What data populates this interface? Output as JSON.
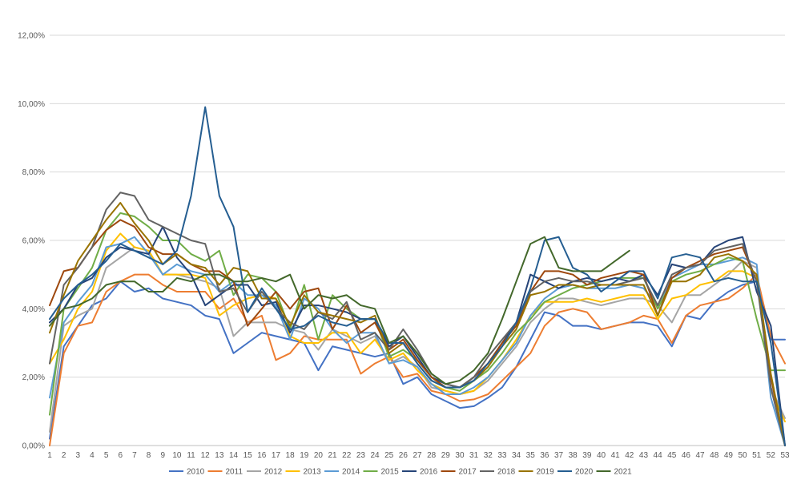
{
  "chart_data": {
    "type": "line",
    "title": "",
    "xlabel": "",
    "ylabel": "",
    "ylim": [
      0,
      0.12
    ],
    "y_ticks": [
      "0,00%",
      "2,00%",
      "4,00%",
      "6,00%",
      "8,00%",
      "10,00%",
      "12,00%"
    ],
    "y_tick_values": [
      0,
      0.02,
      0.04,
      0.06,
      0.08,
      0.1,
      0.12
    ],
    "grid": "horizontal",
    "legend_position": "bottom",
    "x": [
      1,
      2,
      3,
      4,
      5,
      6,
      7,
      8,
      9,
      10,
      11,
      12,
      13,
      14,
      15,
      16,
      17,
      18,
      19,
      20,
      21,
      22,
      23,
      24,
      25,
      26,
      27,
      28,
      29,
      30,
      31,
      32,
      33,
      34,
      35,
      36,
      37,
      38,
      39,
      40,
      41,
      42,
      43,
      44,
      45,
      46,
      47,
      48,
      49,
      50,
      51,
      52,
      53
    ],
    "series": [
      {
        "name": "2010",
        "color": "#4472C4",
        "values": [
          0.002,
          0.029,
          0.035,
          0.041,
          0.043,
          0.048,
          0.045,
          0.046,
          0.043,
          0.042,
          0.041,
          0.038,
          0.037,
          0.027,
          0.03,
          0.033,
          0.032,
          0.031,
          0.03,
          0.022,
          0.029,
          0.028,
          0.027,
          0.026,
          0.027,
          0.018,
          0.02,
          0.015,
          0.013,
          0.011,
          0.0115,
          0.014,
          0.017,
          0.023,
          0.031,
          0.039,
          0.038,
          0.035,
          0.035,
          0.034,
          0.035,
          0.036,
          0.036,
          0.035,
          0.029,
          0.038,
          0.037,
          0.042,
          0.045,
          0.047,
          0.048,
          0.031,
          0.031
        ]
      },
      {
        "name": "2011",
        "color": "#ED7D31",
        "values": [
          0.0,
          0.027,
          0.035,
          0.036,
          0.045,
          0.048,
          0.05,
          0.05,
          0.047,
          0.045,
          0.045,
          0.045,
          0.04,
          0.043,
          0.036,
          0.038,
          0.025,
          0.027,
          0.032,
          0.031,
          0.031,
          0.031,
          0.021,
          0.024,
          0.026,
          0.02,
          0.021,
          0.016,
          0.015,
          0.013,
          0.0135,
          0.015,
          0.019,
          0.023,
          0.027,
          0.035,
          0.039,
          0.04,
          0.039,
          0.034,
          0.035,
          0.036,
          0.038,
          0.037,
          0.03,
          0.038,
          0.041,
          0.042,
          0.043,
          0.046,
          0.05,
          0.032,
          0.024
        ]
      },
      {
        "name": "2012",
        "color": "#A5A5A5",
        "values": [
          0.004,
          0.035,
          0.038,
          0.04,
          0.052,
          0.055,
          0.058,
          0.057,
          0.05,
          0.05,
          0.049,
          0.048,
          0.046,
          0.032,
          0.036,
          0.036,
          0.036,
          0.034,
          0.033,
          0.028,
          0.034,
          0.032,
          0.03,
          0.032,
          0.024,
          0.026,
          0.023,
          0.017,
          0.016,
          0.015,
          0.016,
          0.019,
          0.024,
          0.029,
          0.036,
          0.04,
          0.043,
          0.043,
          0.042,
          0.041,
          0.042,
          0.043,
          0.043,
          0.041,
          0.036,
          0.044,
          0.044,
          0.047,
          0.05,
          0.054,
          0.052,
          0.017,
          0.008
        ]
      },
      {
        "name": "2013",
        "color": "#FFC000",
        "values": [
          0.024,
          0.031,
          0.04,
          0.045,
          0.057,
          0.062,
          0.058,
          0.057,
          0.05,
          0.05,
          0.05,
          0.049,
          0.038,
          0.041,
          0.043,
          0.044,
          0.043,
          0.032,
          0.03,
          0.03,
          0.033,
          0.033,
          0.027,
          0.031,
          0.025,
          0.027,
          0.022,
          0.018,
          0.016,
          0.015,
          0.016,
          0.02,
          0.025,
          0.031,
          0.038,
          0.042,
          0.042,
          0.042,
          0.043,
          0.042,
          0.043,
          0.044,
          0.044,
          0.037,
          0.043,
          0.044,
          0.047,
          0.048,
          0.051,
          0.051,
          0.049,
          0.016,
          0.007
        ]
      },
      {
        "name": "2014",
        "color": "#5B9BD5",
        "values": [
          0.014,
          0.036,
          0.042,
          0.047,
          0.058,
          0.059,
          0.061,
          0.056,
          0.05,
          0.053,
          0.051,
          0.05,
          0.045,
          0.048,
          0.044,
          0.044,
          0.041,
          0.031,
          0.043,
          0.04,
          0.034,
          0.03,
          0.033,
          0.033,
          0.024,
          0.025,
          0.023,
          0.018,
          0.015,
          0.015,
          0.017,
          0.02,
          0.025,
          0.03,
          0.038,
          0.043,
          0.046,
          0.047,
          0.046,
          0.046,
          0.046,
          0.047,
          0.046,
          0.041,
          0.049,
          0.051,
          0.053,
          0.053,
          0.054,
          0.055,
          0.053,
          0.014,
          0.0
        ]
      },
      {
        "name": "2015",
        "color": "#70AD47",
        "values": [
          0.009,
          0.04,
          0.046,
          0.052,
          0.063,
          0.068,
          0.067,
          0.064,
          0.06,
          0.06,
          0.056,
          0.054,
          0.057,
          0.044,
          0.05,
          0.049,
          0.045,
          0.034,
          0.047,
          0.031,
          0.044,
          0.04,
          0.037,
          0.037,
          0.026,
          0.028,
          0.025,
          0.02,
          0.017,
          0.016,
          0.019,
          0.022,
          0.027,
          0.033,
          0.037,
          0.042,
          0.044,
          0.046,
          0.047,
          0.048,
          0.049,
          0.049,
          0.049,
          0.04,
          0.048,
          0.05,
          0.051,
          0.053,
          0.055,
          0.054,
          0.037,
          0.022,
          0.022
        ]
      },
      {
        "name": "2016",
        "color": "#264478",
        "values": [
          0.036,
          0.04,
          0.047,
          0.049,
          0.055,
          0.058,
          0.057,
          0.056,
          0.064,
          0.055,
          0.05,
          0.041,
          0.044,
          0.047,
          0.047,
          0.041,
          0.042,
          0.033,
          0.041,
          0.041,
          0.04,
          0.039,
          0.037,
          0.037,
          0.029,
          0.032,
          0.026,
          0.02,
          0.018,
          0.017,
          0.02,
          0.024,
          0.03,
          0.036,
          0.05,
          0.048,
          0.046,
          0.048,
          0.049,
          0.048,
          0.049,
          0.048,
          0.05,
          0.044,
          0.053,
          0.052,
          0.053,
          0.058,
          0.06,
          0.061,
          0.045,
          0.035,
          0.0
        ]
      },
      {
        "name": "2017",
        "color": "#9E480E",
        "values": [
          0.041,
          0.051,
          0.052,
          0.058,
          0.063,
          0.066,
          0.064,
          0.058,
          0.056,
          0.056,
          0.053,
          0.051,
          0.051,
          0.048,
          0.035,
          0.04,
          0.045,
          0.04,
          0.045,
          0.046,
          0.034,
          0.041,
          0.033,
          0.036,
          0.028,
          0.031,
          0.025,
          0.02,
          0.017,
          0.017,
          0.02,
          0.024,
          0.03,
          0.035,
          0.045,
          0.051,
          0.051,
          0.05,
          0.047,
          0.049,
          0.05,
          0.051,
          0.05,
          0.038,
          0.049,
          0.052,
          0.054,
          0.056,
          0.057,
          0.058,
          0.048,
          0.02,
          0.0
        ]
      },
      {
        "name": "2018",
        "color": "#636363",
        "values": [
          0.024,
          0.047,
          0.052,
          0.058,
          0.069,
          0.074,
          0.073,
          0.066,
          0.064,
          0.062,
          0.06,
          0.059,
          0.045,
          0.046,
          0.039,
          0.045,
          0.04,
          0.036,
          0.034,
          0.039,
          0.037,
          0.042,
          0.031,
          0.033,
          0.028,
          0.034,
          0.028,
          0.021,
          0.018,
          0.017,
          0.02,
          0.026,
          0.031,
          0.036,
          0.045,
          0.048,
          0.049,
          0.048,
          0.048,
          0.047,
          0.047,
          0.048,
          0.049,
          0.041,
          0.05,
          0.052,
          0.053,
          0.057,
          0.058,
          0.059,
          0.048,
          0.017,
          0.0
        ]
      },
      {
        "name": "2019",
        "color": "#997300",
        "values": [
          0.033,
          0.044,
          0.054,
          0.06,
          0.066,
          0.071,
          0.065,
          0.06,
          0.053,
          0.056,
          0.053,
          0.052,
          0.047,
          0.052,
          0.051,
          0.043,
          0.043,
          0.035,
          0.044,
          0.039,
          0.038,
          0.037,
          0.036,
          0.038,
          0.027,
          0.03,
          0.024,
          0.019,
          0.017,
          0.017,
          0.019,
          0.023,
          0.029,
          0.034,
          0.044,
          0.045,
          0.047,
          0.047,
          0.046,
          0.047,
          0.047,
          0.047,
          0.047,
          0.038,
          0.048,
          0.048,
          0.05,
          0.055,
          0.056,
          0.054,
          0.05,
          0.021,
          0.0
        ]
      },
      {
        "name": "2020",
        "color": "#255E91",
        "values": [
          0.037,
          0.043,
          0.047,
          0.05,
          0.054,
          0.059,
          0.057,
          0.055,
          0.053,
          0.057,
          0.073,
          0.099,
          0.073,
          0.064,
          0.039,
          0.046,
          0.04,
          0.034,
          0.035,
          0.038,
          0.036,
          0.035,
          0.037,
          0.037,
          0.03,
          0.03,
          0.024,
          0.019,
          0.017,
          0.017,
          0.019,
          0.024,
          0.029,
          0.036,
          0.046,
          0.06,
          0.061,
          0.052,
          0.05,
          0.045,
          0.048,
          0.051,
          0.051,
          0.043,
          0.055,
          0.056,
          0.055,
          0.048,
          0.049,
          0.048,
          0.048,
          0.03,
          0.0
        ]
      },
      {
        "name": "2021",
        "color": "#43682B",
        "values": [
          0.035,
          0.04,
          0.041,
          0.043,
          0.047,
          0.048,
          0.048,
          0.045,
          0.045,
          0.049,
          0.048,
          0.05,
          0.05,
          0.048,
          0.048,
          0.049,
          0.048,
          0.05,
          0.04,
          0.044,
          0.043,
          0.044,
          0.041,
          0.04,
          0.03,
          0.032,
          0.027,
          0.021,
          0.018,
          0.019,
          0.022,
          0.027,
          0.037,
          0.048,
          0.059,
          0.061,
          0.052,
          0.051,
          0.051,
          0.051,
          0.054,
          0.057,
          null,
          null,
          null,
          null,
          null,
          null,
          null,
          null,
          null,
          null,
          null
        ]
      }
    ]
  }
}
